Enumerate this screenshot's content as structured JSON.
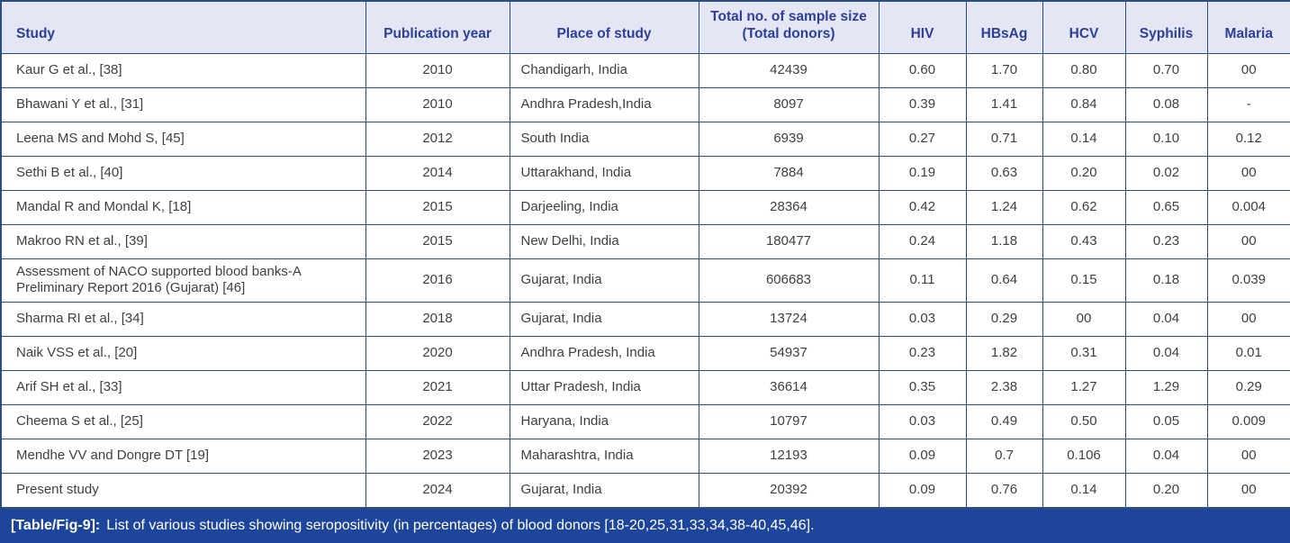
{
  "table": {
    "columns": [
      "Study",
      "Publication year",
      "Place of study",
      "Total no. of sample size (Total donors)",
      "HIV",
      "HBsAg",
      "HCV",
      "Syphilis",
      "Malaria"
    ],
    "rows": [
      [
        "Kaur G et al., [38]",
        "2010",
        "Chandigarh, India",
        "42439",
        "0.60",
        "1.70",
        "0.80",
        "0.70",
        "00"
      ],
      [
        "Bhawani Y et al., [31]",
        "2010",
        "Andhra Pradesh,India",
        "8097",
        "0.39",
        "1.41",
        "0.84",
        "0.08",
        "-"
      ],
      [
        "Leena MS and Mohd S, [45]",
        "2012",
        "South India",
        "6939",
        "0.27",
        "0.71",
        "0.14",
        "0.10",
        "0.12"
      ],
      [
        "Sethi B et al., [40]",
        "2014",
        "Uttarakhand, India",
        "7884",
        "0.19",
        "0.63",
        "0.20",
        "0.02",
        "00"
      ],
      [
        "Mandal R and Mondal K, [18]",
        "2015",
        "Darjeeling, India",
        "28364",
        "0.42",
        "1.24",
        "0.62",
        "0.65",
        "0.004"
      ],
      [
        "Makroo RN et al., [39]",
        "2015",
        "New Delhi, India",
        "180477",
        "0.24",
        "1.18",
        "0.43",
        "0.23",
        "00"
      ],
      [
        "Assessment of NACO supported blood banks-A Preliminary Report 2016 (Gujarat) [46]",
        "2016",
        "Gujarat, India",
        "606683",
        "0.11",
        "0.64",
        "0.15",
        "0.18",
        "0.039"
      ],
      [
        "Sharma RI et al., [34]",
        "2018",
        "Gujarat, India",
        "13724",
        "0.03",
        "0.29",
        "00",
        "0.04",
        "00"
      ],
      [
        "Naik VSS et al., [20]",
        "2020",
        "Andhra Pradesh, India",
        "54937",
        "0.23",
        "1.82",
        "0.31",
        "0.04",
        "0.01"
      ],
      [
        "Arif SH et al., [33]",
        "2021",
        "Uttar Pradesh, India",
        "36614",
        "0.35",
        "2.38",
        "1.27",
        "1.29",
        "0.29"
      ],
      [
        "Cheema S et al., [25]",
        "2022",
        "Haryana, India",
        "10797",
        "0.03",
        "0.49",
        "0.50",
        "0.05",
        "0.009"
      ],
      [
        "Mendhe VV and Dongre DT [19]",
        "2023",
        "Maharashtra, India",
        "12193",
        "0.09",
        "0.7",
        "0.106",
        "0.04",
        "00"
      ],
      [
        "Present study",
        "2024",
        "Gujarat, India",
        "20392",
        "0.09",
        "0.76",
        "0.14",
        "0.20",
        "00"
      ]
    ]
  },
  "caption": {
    "label": "[Table/Fig-9]:",
    "text": "List of various studies showing seropositivity (in percentages) of blood donors [18-20,25,31,33,34,38-40,45,46]."
  },
  "colors": {
    "border": "#2e4d7b",
    "header_bg": "#e4e7f3",
    "header_text": "#2c3f99",
    "body_text": "#3f3f3f",
    "caption_bg": "#1e459c",
    "caption_text": "#ffffff"
  }
}
